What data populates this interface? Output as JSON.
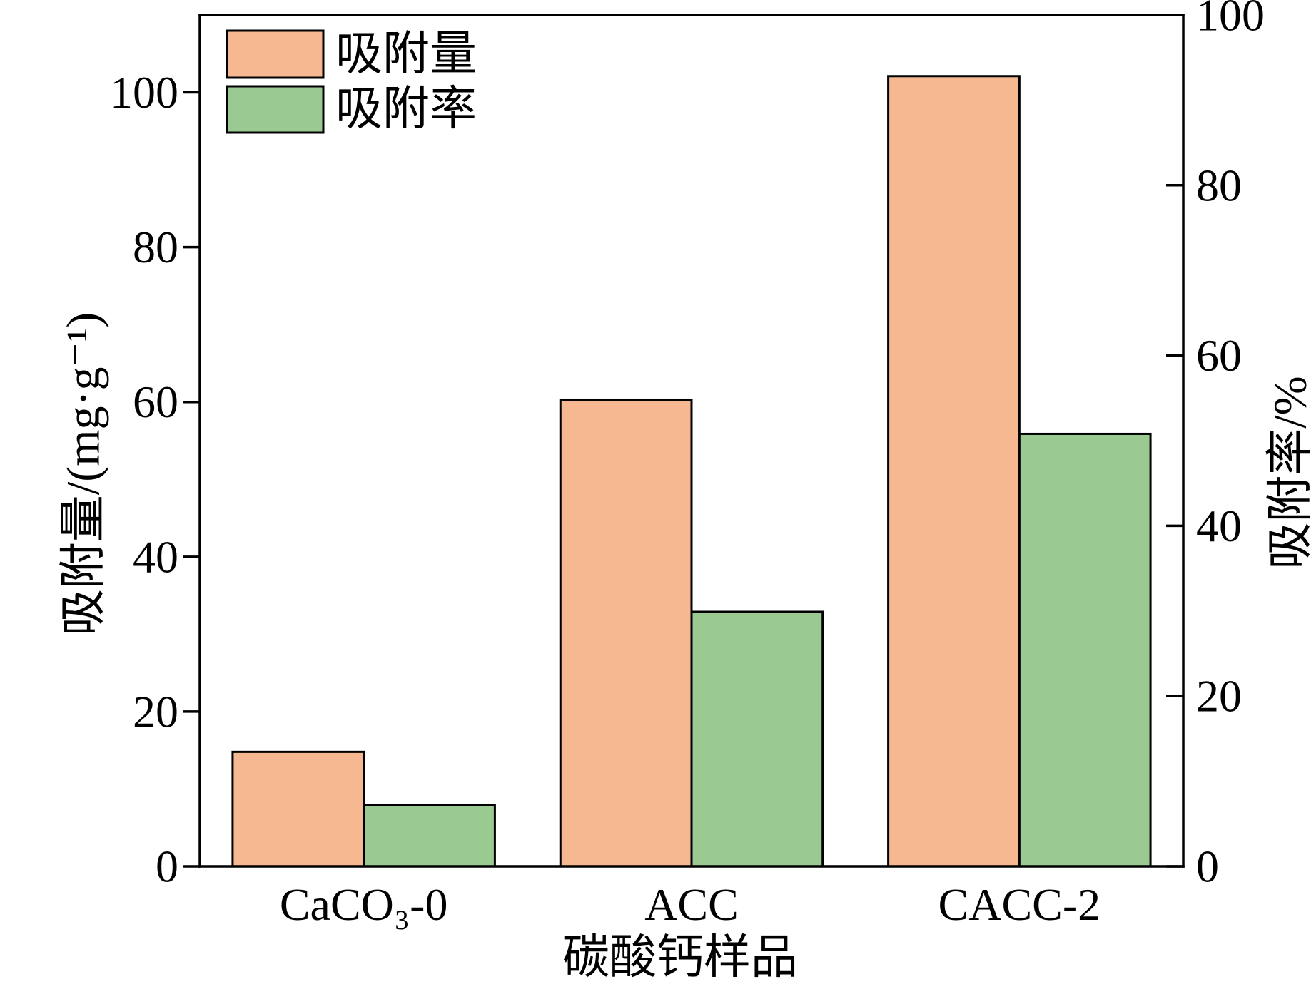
{
  "chart_data": {
    "type": "bar",
    "categories": [
      "CaCO₃-0",
      "ACC",
      "CACC-2"
    ],
    "series": [
      {
        "name": "吸附量",
        "secondary_axis": false,
        "color": "#F6B890",
        "values": [
          14.8,
          60.3,
          102.1
        ]
      },
      {
        "name": "吸附率",
        "secondary_axis": true,
        "color": "#9ACA91",
        "values": [
          7.2,
          29.9,
          50.8
        ]
      }
    ],
    "xlabel": "碳酸钙样品",
    "ylabel": "吸附量/(mg·g⁻¹)",
    "y2label": "吸附率/%",
    "ylim": [
      0,
      110
    ],
    "y2lim": [
      0,
      100
    ],
    "yticks": [
      0,
      20,
      40,
      60,
      80,
      100
    ],
    "y2ticks": [
      0,
      20,
      40,
      60,
      80,
      100
    ],
    "legend": "top-left",
    "grid": false
  }
}
